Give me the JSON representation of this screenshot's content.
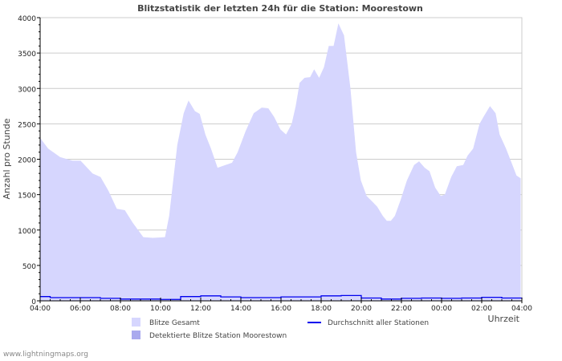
{
  "chart_data": {
    "type": "area",
    "title": "Blitzstatistik der letzten 24h für die Station: Moorestown",
    "xlabel": "Uhrzeit",
    "ylabel": "Anzahl pro Stunde",
    "ylim": [
      0,
      4000
    ],
    "yticks": [
      0,
      500,
      1000,
      1500,
      2000,
      2500,
      3000,
      3500,
      4000
    ],
    "xlim_hours": [
      0,
      24
    ],
    "xtick_labels": [
      "04:00",
      "06:00",
      "08:00",
      "10:00",
      "12:00",
      "14:00",
      "16:00",
      "18:00",
      "20:00",
      "22:00",
      "00:00",
      "02:00",
      "04:00"
    ],
    "grid": true,
    "legend_position": "bottom",
    "colors": {
      "total": "#d6d6fe",
      "station": "#aaaaee",
      "average": "#0000ee",
      "grid": "#cccccc"
    },
    "series": [
      {
        "name": "Blitze Gesamt",
        "kind": "area",
        "x_hours": [
          0,
          0.4,
          1.0,
          1.61,
          2.01,
          2.61,
          3.01,
          3.41,
          3.82,
          4.22,
          4.62,
          5.14,
          5.62,
          6.22,
          6.43,
          6.83,
          7.15,
          7.39,
          7.71,
          7.95,
          8.23,
          8.51,
          8.84,
          9.24,
          9.56,
          9.84,
          10.24,
          10.64,
          11.04,
          11.37,
          11.65,
          11.97,
          12.25,
          12.53,
          12.73,
          12.93,
          13.17,
          13.45,
          13.65,
          13.9,
          14.14,
          14.38,
          14.62,
          14.86,
          15.14,
          15.46,
          15.74,
          15.98,
          16.27,
          16.55,
          16.79,
          17.07,
          17.27,
          17.47,
          17.67,
          17.95,
          18.27,
          18.63,
          18.88,
          19.16,
          19.4,
          19.68,
          19.96,
          20.16,
          20.48,
          20.76,
          21.08,
          21.29,
          21.57,
          21.89,
          22.09,
          22.41,
          22.69,
          22.89,
          23.21,
          23.49,
          23.73,
          23.94
        ],
        "values": [
          2300,
          2150,
          2030,
          1980,
          1980,
          1800,
          1750,
          1550,
          1300,
          1280,
          1100,
          900,
          890,
          900,
          1200,
          2200,
          2650,
          2830,
          2680,
          2640,
          2350,
          2150,
          1880,
          1920,
          1950,
          2100,
          2400,
          2650,
          2730,
          2720,
          2600,
          2420,
          2350,
          2500,
          2750,
          3080,
          3150,
          3160,
          3270,
          3150,
          3300,
          3600,
          3600,
          3920,
          3750,
          3000,
          2100,
          1700,
          1480,
          1400,
          1330,
          1200,
          1130,
          1130,
          1200,
          1420,
          1700,
          1920,
          1970,
          1880,
          1830,
          1600,
          1480,
          1500,
          1750,
          1900,
          1920,
          2050,
          2150,
          2500,
          2600,
          2750,
          2650,
          2350,
          2150,
          1950,
          1770,
          1730
        ]
      },
      {
        "name": "Detektierte Blitze Station Moorestown",
        "kind": "area",
        "x_hours": [],
        "values": []
      },
      {
        "name": "Durchschnitt aller Stationen",
        "kind": "line",
        "x_hours": [
          0,
          0.5,
          1,
          3,
          4,
          6,
          7,
          8,
          9,
          10,
          11,
          12,
          13,
          14,
          15,
          16,
          17,
          18,
          19,
          20,
          21,
          22,
          23,
          24
        ],
        "values": [
          60,
          45,
          45,
          35,
          25,
          20,
          60,
          70,
          55,
          45,
          45,
          55,
          55,
          70,
          75,
          40,
          25,
          35,
          40,
          35,
          40,
          50,
          40,
          30
        ]
      }
    ]
  },
  "footer": "www.lightningmaps.org"
}
